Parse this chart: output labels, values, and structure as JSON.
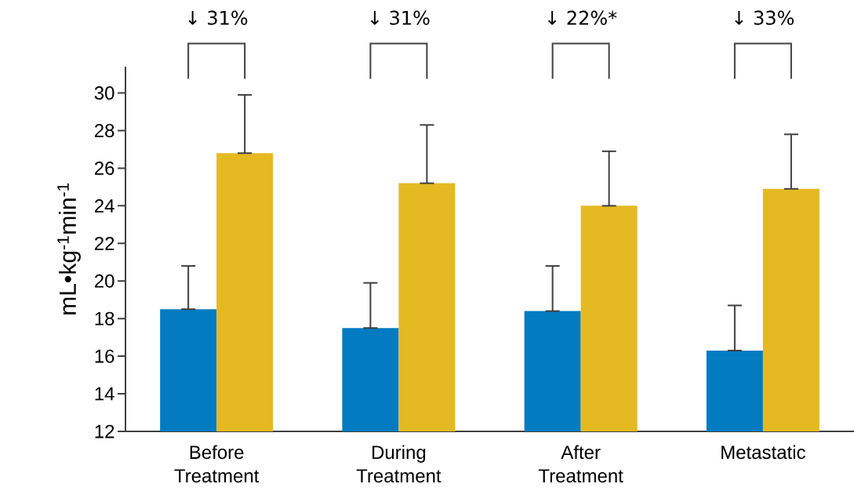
{
  "chart_data": {
    "type": "bar",
    "ylabel": "mL•kg$^{-1}$min$^{-1}$",
    "categories": [
      "Before Treatment",
      "During Treatment",
      "After Treatment",
      "Metastatic"
    ],
    "series": [
      {
        "color": "#037bc1",
        "values": [
          18.5,
          17.5,
          18.4,
          16.3
        ],
        "errors": [
          [
            18.5,
            20.8
          ],
          [
            17.5,
            19.9
          ],
          [
            18.4,
            20.8
          ],
          [
            16.3,
            18.7
          ]
        ]
      },
      {
        "color": "#e5b921",
        "values": [
          26.8,
          25.2,
          24.0,
          24.9
        ],
        "errors": [
          [
            26.8,
            29.9
          ],
          [
            25.2,
            28.3
          ],
          [
            24.0,
            26.9
          ],
          [
            24.9,
            27.8
          ]
        ]
      }
    ],
    "ylim": [
      12,
      31.4
    ],
    "yticks": [
      12,
      14,
      16,
      18,
      20,
      22,
      24,
      26,
      28,
      30
    ],
    "grid": false,
    "annotations": [
      "↓ 31%",
      "↓ 31%",
      "↓ 22%*",
      "↓ 33%"
    ]
  }
}
